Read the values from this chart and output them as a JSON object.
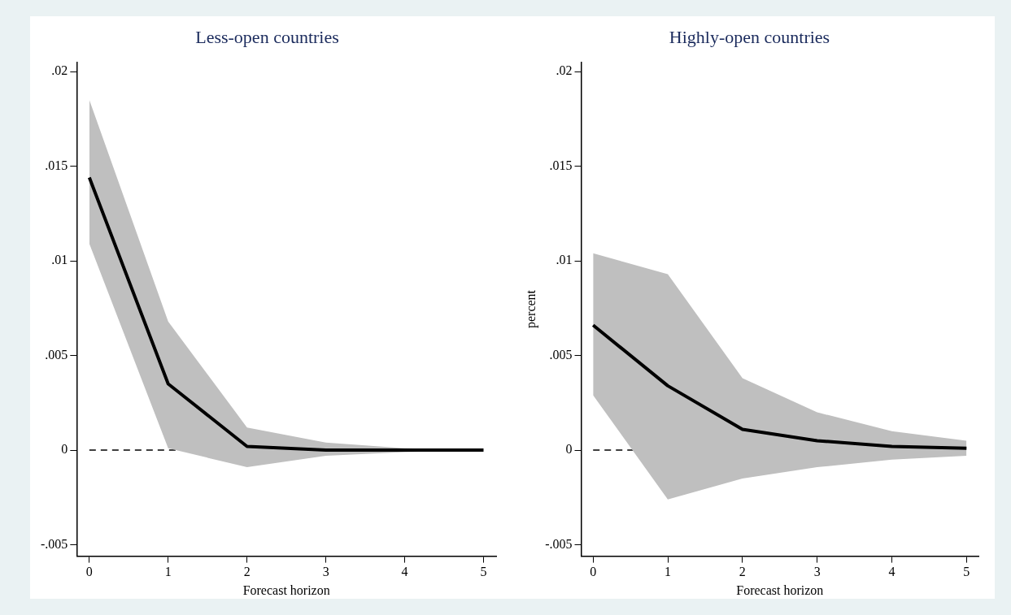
{
  "chart_data": [
    {
      "type": "line",
      "title": "Less-open countries",
      "xlabel": "Forecast horizon",
      "x": [
        0,
        1,
        2,
        3,
        4,
        5
      ],
      "xlim": [
        -0.16,
        5.16
      ],
      "xticks": [
        0,
        1,
        2,
        3,
        4,
        5
      ],
      "ylim": [
        -0.0056,
        0.0205
      ],
      "yticks": [
        {
          "value": -0.005,
          "label": "-.005"
        },
        {
          "value": 0,
          "label": "0"
        },
        {
          "value": 0.005,
          "label": ".005"
        },
        {
          "value": 0.01,
          "label": ".01"
        },
        {
          "value": 0.015,
          "label": ".015"
        },
        {
          "value": 0.02,
          "label": ".02"
        }
      ],
      "grid": false,
      "legend": false,
      "marker": "none",
      "line_style": "solid",
      "series": [
        {
          "color": "#000000",
          "values": [
            0.0144,
            0.0035,
            0.0002,
            0,
            0,
            0
          ],
          "lower": [
            0.0109,
            0.0001,
            -0.0009,
            -0.0003,
            -0.0001,
            0
          ],
          "upper": [
            0.0185,
            0.0068,
            0.0012,
            0.0004,
            0.0001,
            0
          ]
        }
      ],
      "ref_lines": [
        {
          "axis": "y",
          "value": 0,
          "line_style": "dashed",
          "color": "#000000"
        }
      ]
    },
    {
      "type": "line",
      "title": "Highly-open countries",
      "xlabel": "Forecast horizon",
      "ylabel": "percent",
      "x": [
        0,
        1,
        2,
        3,
        4,
        5
      ],
      "xlim": [
        -0.16,
        5.16
      ],
      "xticks": [
        0,
        1,
        2,
        3,
        4,
        5
      ],
      "ylim": [
        -0.0056,
        0.0205
      ],
      "yticks": [
        {
          "value": -0.005,
          "label": "-.005"
        },
        {
          "value": 0,
          "label": "0"
        },
        {
          "value": 0.005,
          "label": ".005"
        },
        {
          "value": 0.01,
          "label": ".01"
        },
        {
          "value": 0.015,
          "label": ".015"
        },
        {
          "value": 0.02,
          "label": ".02"
        }
      ],
      "grid": false,
      "legend": false,
      "marker": "none",
      "line_style": "solid",
      "series": [
        {
          "color": "#000000",
          "values": [
            0.0066,
            0.0034,
            0.0011,
            0.0005,
            0.0002,
            0.0001
          ],
          "lower": [
            0.0029,
            -0.0026,
            -0.0015,
            -0.0009,
            -0.0005,
            -0.0003
          ],
          "upper": [
            0.0104,
            0.0093,
            0.0038,
            0.002,
            0.001,
            0.0005
          ]
        }
      ],
      "ref_lines": [
        {
          "axis": "y",
          "value": 0,
          "line_style": "dashed",
          "color": "#000000"
        }
      ]
    }
  ]
}
